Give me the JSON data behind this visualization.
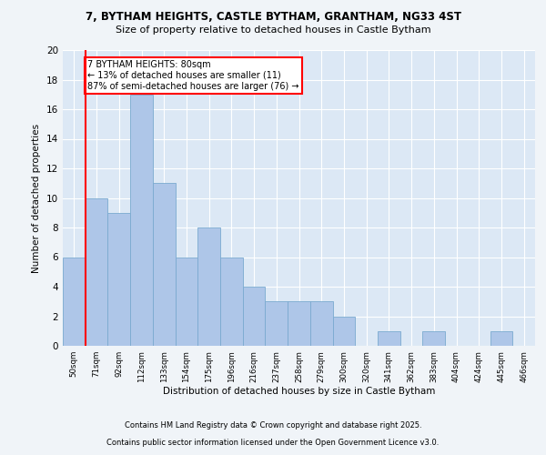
{
  "title1": "7, BYTHAM HEIGHTS, CASTLE BYTHAM, GRANTHAM, NG33 4ST",
  "title2": "Size of property relative to detached houses in Castle Bytham",
  "xlabel": "Distribution of detached houses by size in Castle Bytham",
  "ylabel": "Number of detached properties",
  "categories": [
    "50sqm",
    "71sqm",
    "92sqm",
    "112sqm",
    "133sqm",
    "154sqm",
    "175sqm",
    "196sqm",
    "216sqm",
    "237sqm",
    "258sqm",
    "279sqm",
    "300sqm",
    "320sqm",
    "341sqm",
    "362sqm",
    "383sqm",
    "404sqm",
    "424sqm",
    "445sqm",
    "466sqm"
  ],
  "values": [
    6,
    10,
    9,
    17,
    11,
    6,
    8,
    6,
    4,
    3,
    3,
    3,
    2,
    0,
    1,
    0,
    1,
    0,
    0,
    1,
    0
  ],
  "bar_color": "#aec6e8",
  "bar_edge_color": "#7aaad0",
  "background_color": "#dce8f5",
  "grid_color": "#ffffff",
  "vline_x_idx": 1,
  "vline_color": "red",
  "annotation_text": "7 BYTHAM HEIGHTS: 80sqm\n← 13% of detached houses are smaller (11)\n87% of semi-detached houses are larger (76) →",
  "annotation_box_color": "white",
  "annotation_box_edge": "red",
  "ylim": [
    0,
    20
  ],
  "yticks": [
    0,
    2,
    4,
    6,
    8,
    10,
    12,
    14,
    16,
    18,
    20
  ],
  "footnote1": "Contains HM Land Registry data © Crown copyright and database right 2025.",
  "footnote2": "Contains public sector information licensed under the Open Government Licence v3.0.",
  "fig_bg": "#f0f4f8"
}
